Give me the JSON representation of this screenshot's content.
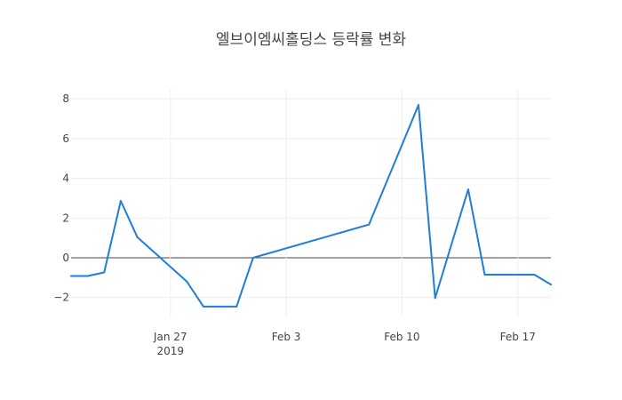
{
  "chart_data": {
    "type": "line",
    "title": "엘브이엠씨홀딩스 등락률 변화",
    "xlabel": "",
    "ylabel": "",
    "x_axis": {
      "type": "date",
      "range": [
        "2019-01-21",
        "2019-02-19"
      ],
      "ticks": [
        {
          "value": "2019-01-27",
          "label": "Jan 27",
          "sublabel": "2019"
        },
        {
          "value": "2019-02-03",
          "label": "Feb 3",
          "sublabel": ""
        },
        {
          "value": "2019-02-10",
          "label": "Feb 10",
          "sublabel": ""
        },
        {
          "value": "2019-02-17",
          "label": "Feb 17",
          "sublabel": ""
        }
      ],
      "grid": true
    },
    "y_axis": {
      "range": [
        -3,
        8.5
      ],
      "ticks": [
        {
          "value": -2,
          "label": "−2"
        },
        {
          "value": 0,
          "label": "0"
        },
        {
          "value": 2,
          "label": "2"
        },
        {
          "value": 4,
          "label": "4"
        },
        {
          "value": 6,
          "label": "6"
        },
        {
          "value": 8,
          "label": "8"
        }
      ],
      "grid": true,
      "zero_line": true
    },
    "series": [
      {
        "color": "#1f7fd8",
        "points": [
          {
            "x": "2019-01-21",
            "y": -0.92
          },
          {
            "x": "2019-01-22",
            "y": -0.92
          },
          {
            "x": "2019-01-23",
            "y": -0.74
          },
          {
            "x": "2019-01-24",
            "y": 2.86
          },
          {
            "x": "2019-01-25",
            "y": 1.04
          },
          {
            "x": "2019-01-28",
            "y": -1.2
          },
          {
            "x": "2019-01-29",
            "y": -2.46
          },
          {
            "x": "2019-01-30",
            "y": -2.46
          },
          {
            "x": "2019-01-31",
            "y": -2.46
          },
          {
            "x": "2019-02-01",
            "y": 0.0
          },
          {
            "x": "2019-02-08",
            "y": 1.67
          },
          {
            "x": "2019-02-11",
            "y": 7.69
          },
          {
            "x": "2019-02-12",
            "y": -2.03
          },
          {
            "x": "2019-02-14",
            "y": 3.44
          },
          {
            "x": "2019-02-15",
            "y": -0.85
          },
          {
            "x": "2019-02-18",
            "y": -0.85
          },
          {
            "x": "2019-02-19",
            "y": -1.35
          }
        ]
      }
    ]
  }
}
